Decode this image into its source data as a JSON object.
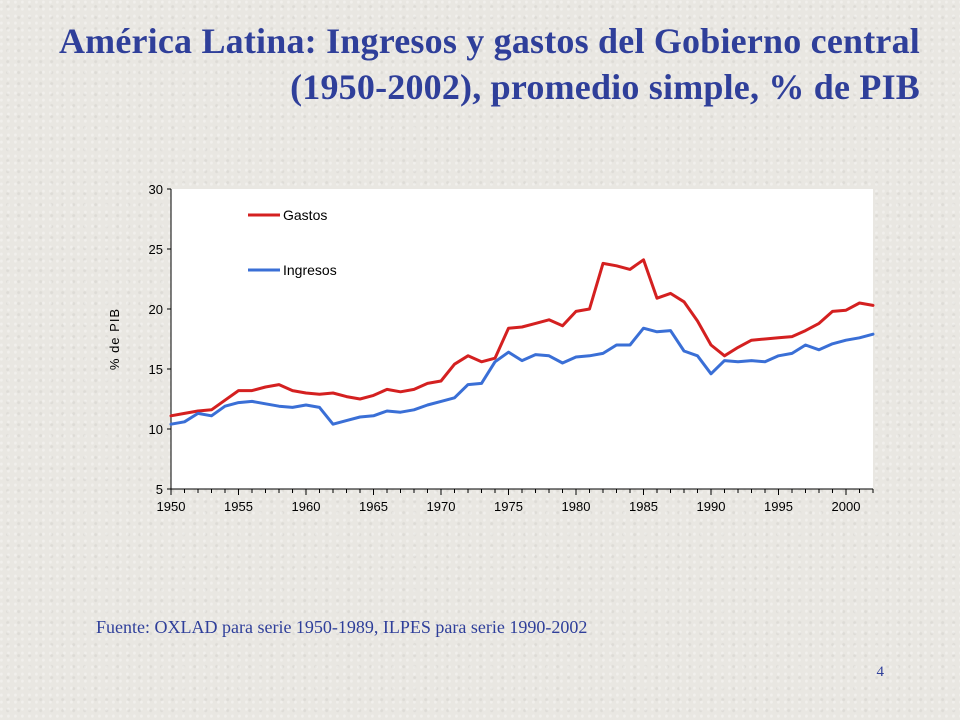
{
  "slide": {
    "title_line1": "América Latina: Ingresos y gastos del Gobierno central",
    "title_line2": "(1950-2002), promedio simple, % de PIB",
    "source": "Fuente: OXLAD para serie 1950-1989, ILPES para serie 1990-2002",
    "page_number": "4"
  },
  "chart_data": {
    "type": "line",
    "ylabel": "% de PIB",
    "xlabel": "",
    "ylim": [
      5,
      30
    ],
    "xlim": [
      1950,
      2002
    ],
    "yticks": [
      5,
      10,
      15,
      20,
      25,
      30
    ],
    "xticks": [
      1950,
      1955,
      1960,
      1965,
      1970,
      1975,
      1980,
      1985,
      1990,
      1995,
      2000
    ],
    "legend_position": "top-left",
    "grid": false,
    "x": [
      1950,
      1951,
      1952,
      1953,
      1954,
      1955,
      1956,
      1957,
      1958,
      1959,
      1960,
      1961,
      1962,
      1963,
      1964,
      1965,
      1966,
      1967,
      1968,
      1969,
      1970,
      1971,
      1972,
      1973,
      1974,
      1975,
      1976,
      1977,
      1978,
      1979,
      1980,
      1981,
      1982,
      1983,
      1984,
      1985,
      1986,
      1987,
      1988,
      1989,
      1990,
      1991,
      1992,
      1993,
      1994,
      1995,
      1996,
      1997,
      1998,
      1999,
      2000,
      2001,
      2002
    ],
    "series": [
      {
        "name": "Gastos",
        "color": "#d42020",
        "values": [
          11.1,
          11.3,
          11.5,
          11.6,
          12.4,
          13.2,
          13.2,
          13.5,
          13.7,
          13.2,
          13.0,
          12.9,
          13.0,
          12.7,
          12.5,
          12.8,
          13.3,
          13.1,
          13.3,
          13.8,
          14.0,
          15.4,
          16.1,
          15.6,
          15.9,
          18.4,
          18.5,
          18.8,
          19.1,
          18.6,
          19.8,
          20.0,
          23.8,
          23.6,
          23.3,
          24.1,
          20.9,
          21.3,
          20.6,
          19.0,
          17.0,
          16.1,
          16.8,
          17.4,
          17.5,
          17.6,
          17.7,
          18.2,
          18.8,
          19.8,
          19.9,
          20.5,
          20.3
        ]
      },
      {
        "name": "Ingresos",
        "color": "#3a6fd6",
        "values": [
          10.4,
          10.6,
          11.3,
          11.1,
          11.9,
          12.2,
          12.3,
          12.1,
          11.9,
          11.8,
          12.0,
          11.8,
          10.4,
          10.7,
          11.0,
          11.1,
          11.5,
          11.4,
          11.6,
          12.0,
          12.3,
          12.6,
          13.7,
          13.8,
          15.6,
          16.4,
          15.7,
          16.2,
          16.1,
          15.5,
          16.0,
          16.1,
          16.3,
          17.0,
          17.0,
          18.4,
          18.1,
          18.2,
          16.5,
          16.1,
          14.6,
          15.7,
          15.6,
          15.7,
          15.6,
          16.1,
          16.3,
          17.0,
          16.6,
          17.1,
          17.4,
          17.6,
          17.9
        ]
      }
    ]
  }
}
